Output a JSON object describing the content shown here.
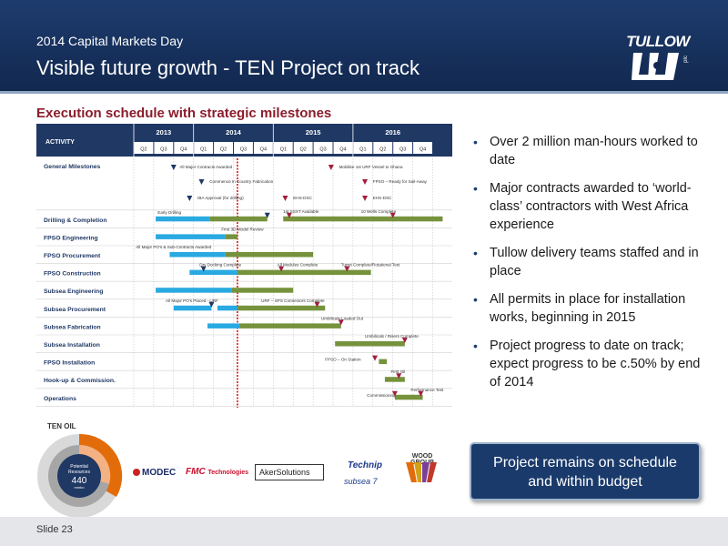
{
  "header": {
    "subtitle": "2014 Capital Markets Day",
    "title": "Visible future growth - TEN Project on track",
    "logo_text": "TULLOW",
    "logo_small": "plc"
  },
  "section_title": "Execution schedule with strategic milestones",
  "gantt": {
    "activity_header": "ACTIVITY",
    "years": [
      {
        "label": "2013",
        "quarters": [
          "Q2",
          "Q3",
          "Q4"
        ]
      },
      {
        "label": "2014",
        "quarters": [
          "Q1",
          "Q2",
          "Q3",
          "Q4"
        ]
      },
      {
        "label": "2015",
        "quarters": [
          "Q1",
          "Q2",
          "Q3",
          "Q4"
        ]
      },
      {
        "label": "2016",
        "quarters": [
          "Q1",
          "Q2",
          "Q3",
          "Q4"
        ]
      }
    ],
    "rows": [
      "General Milestones",
      "Drilling & Completion",
      "FPSO Engineering",
      "FPSO Procurement",
      "FPSO Construction",
      "Subsea Engineering",
      "Subsea Procurement",
      "Subsea Fabrication",
      "Subsea Installation",
      "FPSO Installation",
      "Hook-up & Commission.",
      "Operations"
    ],
    "annotations": [
      "All Major Contracts Awarded",
      "Mobilise 1st URF Vessel to Ghana",
      "Commence In Country Fabrication",
      "FPSO – Ready for Sail-Away",
      "IBA Approval (for drilling)",
      "EHS-DSC",
      "EHS-DSC",
      "1st SSXT Available",
      "10 Wells Complete",
      "Early Drilling",
      "First 3D Model Review",
      "All Major PO's & Sub-Contracts Awarded",
      "Dry Docking Complete",
      "All Modules Complete",
      "Turret Complete/Rotational Test",
      "All Major PO's Placed - URF",
      "URF – SPS Connectors Complete",
      "Umbilicals Loaded Out",
      "Umbilicals / Risers Complete",
      "FPSO – On Station",
      "First Oil",
      "Commissioning",
      "Performance Test"
    ]
  },
  "bullets": [
    "Over 2 million man-hours worked to date",
    "Major contracts awarded to ‘world-class’ contractors with West Africa experience",
    "Tullow delivery teams staffed and in place",
    "All permits in place for installation works, beginning in 2015",
    "Project progress to date on track; expect progress to be c.50% by end of 2014"
  ],
  "callout": {
    "line1": "Project remains on schedule",
    "line2": "and within budget"
  },
  "donut": {
    "label": "TEN OIL",
    "center_line1": "Potential",
    "center_line2": "Resources",
    "value": "440",
    "unit": "mmbo"
  },
  "partners": {
    "modec": "MODEC",
    "fmc": "FMC",
    "fmc_small": "Technologies",
    "aker": "AkerSolutions",
    "technip": "Technip",
    "subsea": "subsea 7",
    "wood": "WOOD GROUP"
  },
  "footer": "Slide 23",
  "colors": {
    "header_bg": "#1d3c6e",
    "title_red": "#8b1d2c",
    "bar_blue": "#29a9e1",
    "bar_green": "#76923c",
    "milestone_navy": "#1f3864",
    "milestone_red": "#a31e3c"
  }
}
